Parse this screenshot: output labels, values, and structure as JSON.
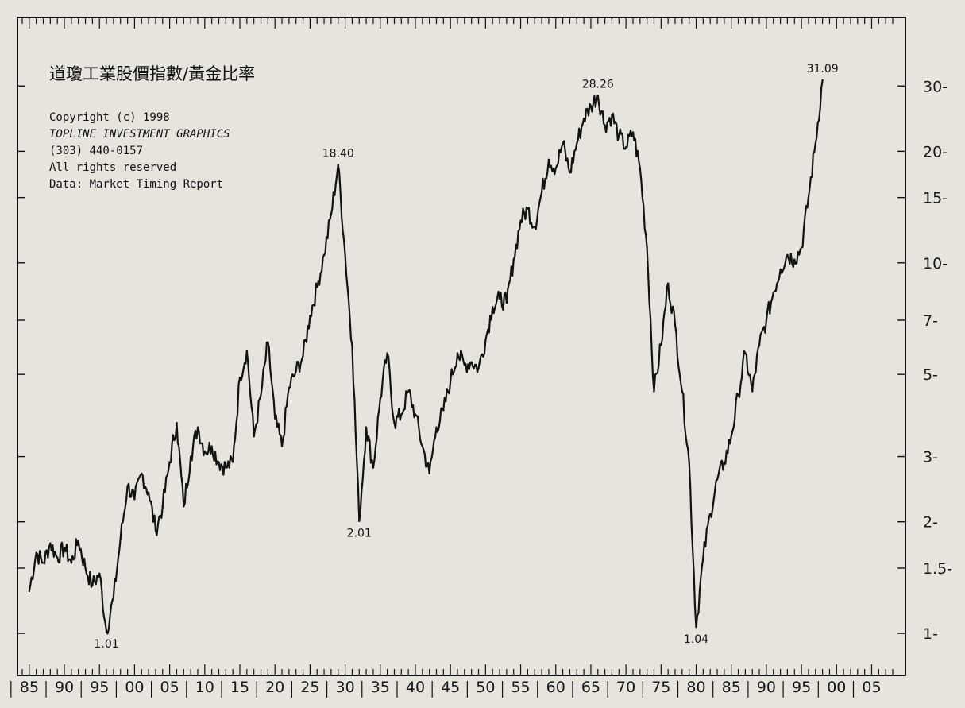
{
  "chart_data": {
    "type": "line",
    "title": "道瓊工業股價指數/黃金比率",
    "notes": [
      "Copyright (c) 1998",
      "TOPLINE INVESTMENT GRAPHICS",
      "(303) 440-0157",
      "All rights reserved",
      "Data: Market Timing Report"
    ],
    "xlabel": "",
    "ylabel": "",
    "x_tick_labels": [
      "85",
      "90",
      "95",
      "00",
      "05",
      "10",
      "15",
      "20",
      "25",
      "30",
      "35",
      "40",
      "45",
      "50",
      "55",
      "60",
      "65",
      "70",
      "75",
      "80",
      "85",
      "90",
      "95",
      "00",
      "05"
    ],
    "y_scale": "log",
    "y_ticks": [
      1,
      1.5,
      2,
      3,
      5,
      7,
      10,
      15,
      20,
      30
    ],
    "y_tick_labels": [
      "1-",
      "1.5-",
      "2-",
      "3-",
      "5-",
      "7-",
      "10-",
      "15-",
      "20-",
      "30-"
    ],
    "ylim": [
      0.85,
      40
    ],
    "xlim": [
      1884,
      2008
    ],
    "annotations": [
      {
        "x": 1896,
        "y": 1.01,
        "label": "1.01"
      },
      {
        "x": 1929,
        "y": 18.4,
        "label": "18.40"
      },
      {
        "x": 1932,
        "y": 2.01,
        "label": "2.01"
      },
      {
        "x": 1966,
        "y": 28.26,
        "label": "28.26"
      },
      {
        "x": 1980,
        "y": 1.04,
        "label": "1.04"
      },
      {
        "x": 1998,
        "y": 31.09,
        "label": "31.09"
      }
    ],
    "series": [
      {
        "points": [
          [
            1885,
            1.3
          ],
          [
            1886,
            1.65
          ],
          [
            1887,
            1.55
          ],
          [
            1888,
            1.75
          ],
          [
            1889,
            1.6
          ],
          [
            1890,
            1.7
          ],
          [
            1891,
            1.55
          ],
          [
            1892,
            1.78
          ],
          [
            1893,
            1.5
          ],
          [
            1894,
            1.35
          ],
          [
            1895,
            1.45
          ],
          [
            1896,
            1.01
          ],
          [
            1897,
            1.25
          ],
          [
            1898,
            1.8
          ],
          [
            1899,
            2.5
          ],
          [
            1900,
            2.3
          ],
          [
            1901,
            2.7
          ],
          [
            1902,
            2.4
          ],
          [
            1903,
            1.9
          ],
          [
            1904,
            2.2
          ],
          [
            1905,
            2.9
          ],
          [
            1906,
            3.7
          ],
          [
            1907,
            2.2
          ],
          [
            1908,
            3.0
          ],
          [
            1909,
            3.6
          ],
          [
            1910,
            3.1
          ],
          [
            1911,
            3.2
          ],
          [
            1912,
            2.9
          ],
          [
            1913,
            2.8
          ],
          [
            1914,
            2.9
          ],
          [
            1915,
            4.9
          ],
          [
            1916,
            5.8
          ],
          [
            1917,
            3.4
          ],
          [
            1918,
            4.4
          ],
          [
            1919,
            6.1
          ],
          [
            1920,
            3.8
          ],
          [
            1921,
            3.2
          ],
          [
            1922,
            4.6
          ],
          [
            1923,
            5.1
          ],
          [
            1924,
            5.6
          ],
          [
            1925,
            7.2
          ],
          [
            1926,
            8.6
          ],
          [
            1927,
            10.5
          ],
          [
            1928,
            13.5
          ],
          [
            1929,
            18.4
          ],
          [
            1930,
            10.5
          ],
          [
            1931,
            6.0
          ],
          [
            1932,
            2.01
          ],
          [
            1933,
            3.6
          ],
          [
            1934,
            2.8
          ],
          [
            1935,
            4.3
          ],
          [
            1936,
            5.7
          ],
          [
            1937,
            3.7
          ],
          [
            1938,
            3.9
          ],
          [
            1939,
            4.5
          ],
          [
            1940,
            3.9
          ],
          [
            1941,
            3.2
          ],
          [
            1942,
            2.7
          ],
          [
            1943,
            3.6
          ],
          [
            1944,
            4.0
          ],
          [
            1945,
            4.8
          ],
          [
            1946,
            5.7
          ],
          [
            1947,
            5.3
          ],
          [
            1948,
            5.4
          ],
          [
            1949,
            5.2
          ],
          [
            1950,
            6.2
          ],
          [
            1951,
            7.6
          ],
          [
            1952,
            8.0
          ],
          [
            1953,
            7.8
          ],
          [
            1954,
            10.2
          ],
          [
            1955,
            13.0
          ],
          [
            1956,
            14.0
          ],
          [
            1957,
            12.5
          ],
          [
            1958,
            15.5
          ],
          [
            1959,
            19.0
          ],
          [
            1960,
            18.0
          ],
          [
            1961,
            21.0
          ],
          [
            1962,
            17.5
          ],
          [
            1963,
            21.0
          ],
          [
            1964,
            24.5
          ],
          [
            1965,
            26.5
          ],
          [
            1966,
            28.26
          ],
          [
            1967,
            23.5
          ],
          [
            1968,
            25.0
          ],
          [
            1969,
            22.0
          ],
          [
            1970,
            20.5
          ],
          [
            1971,
            22.5
          ],
          [
            1972,
            18.0
          ],
          [
            1973,
            11.0
          ],
          [
            1974,
            4.5
          ],
          [
            1975,
            6.0
          ],
          [
            1976,
            8.8
          ],
          [
            1977,
            6.8
          ],
          [
            1978,
            4.5
          ],
          [
            1979,
            2.9
          ],
          [
            1980,
            1.04
          ],
          [
            1981,
            1.6
          ],
          [
            1982,
            2.1
          ],
          [
            1983,
            2.6
          ],
          [
            1984,
            2.9
          ],
          [
            1985,
            3.4
          ],
          [
            1986,
            4.4
          ],
          [
            1987,
            5.7
          ],
          [
            1988,
            4.5
          ],
          [
            1989,
            6.0
          ],
          [
            1990,
            7.0
          ],
          [
            1991,
            8.3
          ],
          [
            1992,
            9.6
          ],
          [
            1993,
            10.5
          ],
          [
            1994,
            10.2
          ],
          [
            1995,
            11.0
          ],
          [
            1996,
            15.0
          ],
          [
            1997,
            21.0
          ],
          [
            1998,
            31.09
          ]
        ]
      }
    ],
    "colors": {
      "line": "#121212",
      "background": "#e7e4de",
      "frame": "#111111"
    }
  }
}
